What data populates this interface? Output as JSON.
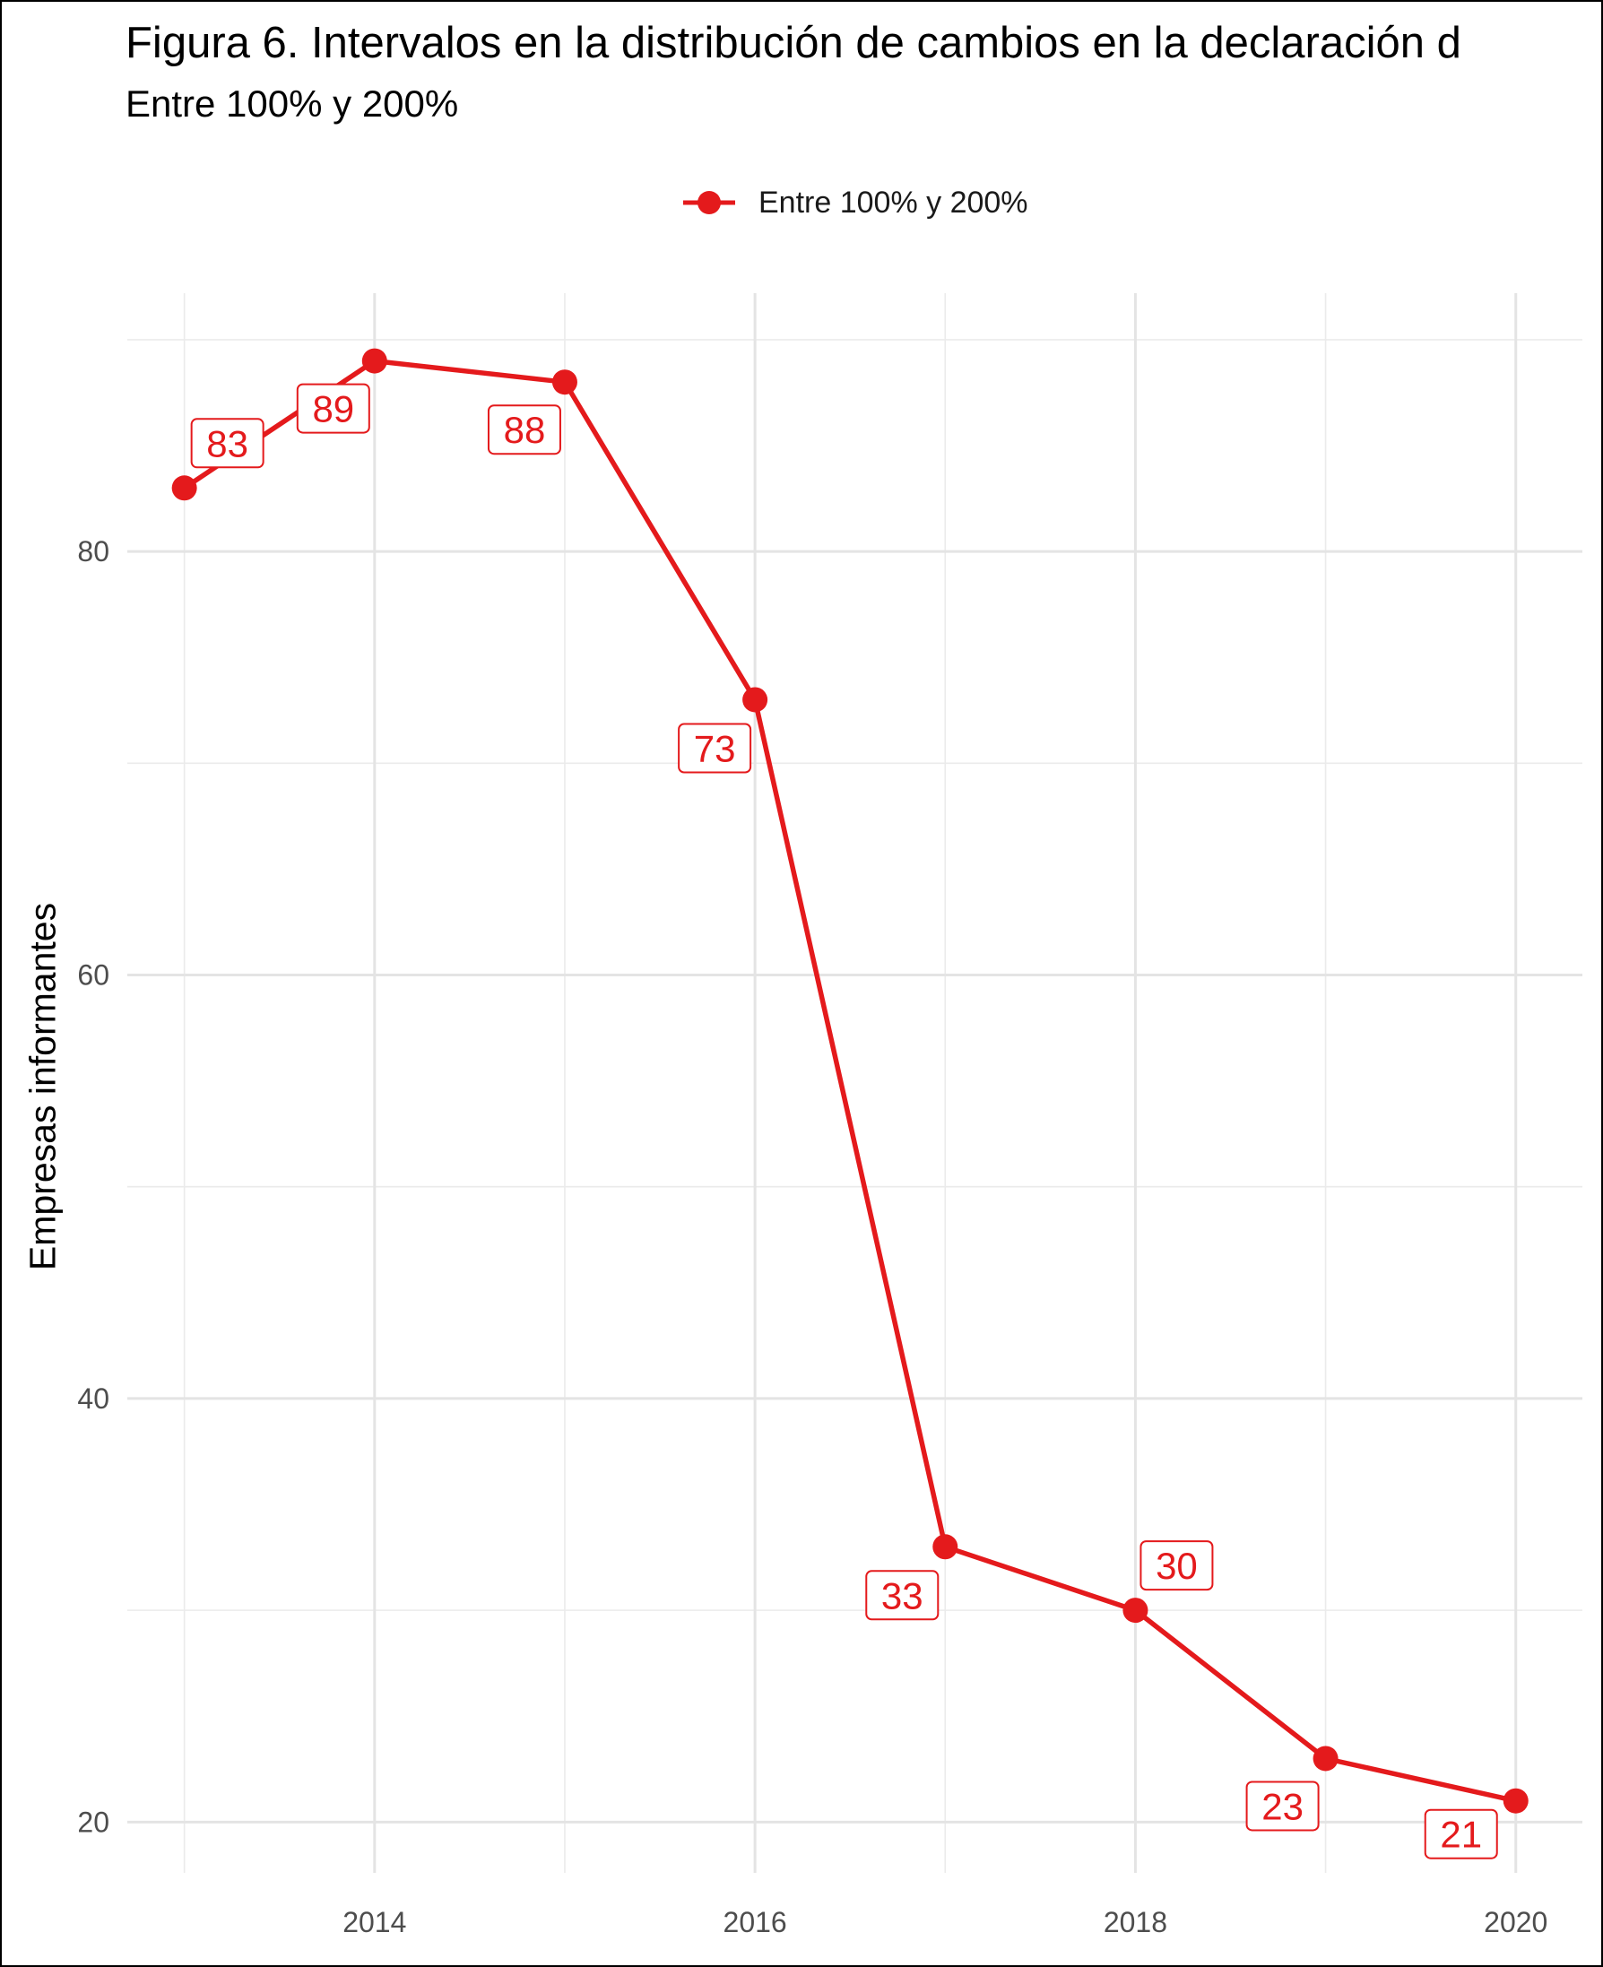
{
  "chart_data": {
    "type": "line",
    "title": "Figura 6. Intervalos en la distribución de cambios en la declaración d",
    "subtitle": "Entre 100% y 200%",
    "xlabel": "",
    "ylabel": "Empresas informantes",
    "x": [
      2013,
      2014,
      2015,
      2016,
      2017,
      2018,
      2019,
      2020
    ],
    "series": [
      {
        "name": "Entre 100% y 200%",
        "values": [
          83,
          89,
          88,
          73,
          33,
          30,
          23,
          21
        ],
        "color": "#e41a1c"
      }
    ],
    "data_labels": [
      "83",
      "89",
      "88",
      "73",
      "33",
      "30",
      "23",
      "21"
    ],
    "xlim": [
      2012.7,
      2020.35
    ],
    "ylim": [
      17.6,
      92.2
    ],
    "x_ticks": [
      2014,
      2016,
      2018,
      2020
    ],
    "x_tick_labels": [
      "2014",
      "2016",
      "2018",
      "2020"
    ],
    "y_ticks": [
      20,
      40,
      60,
      80
    ],
    "y_tick_labels": [
      "20",
      "40",
      "60",
      "80"
    ],
    "grid": true,
    "legend_position": "top-center"
  }
}
